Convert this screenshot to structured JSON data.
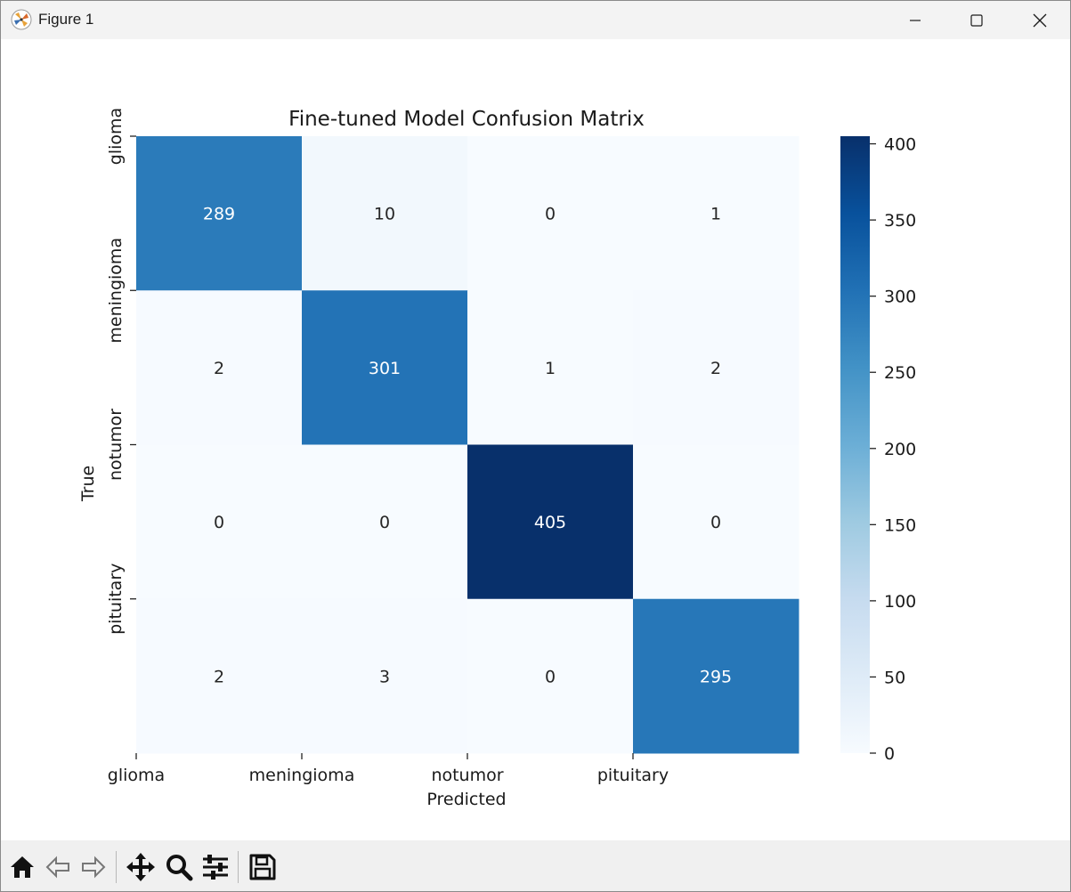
{
  "window": {
    "title": "Figure 1",
    "icons": [
      "matplotlib-logo-icon",
      "minimize-icon",
      "maximize-icon",
      "close-icon"
    ]
  },
  "toolbar": {
    "icons": [
      "home-icon",
      "back-icon",
      "forward-icon",
      "pan-icon",
      "zoom-icon",
      "configure-subplots-icon",
      "save-icon"
    ]
  },
  "chart_data": {
    "type": "heatmap",
    "title": "Fine-tuned Model Confusion Matrix",
    "xlabel": "Predicted",
    "ylabel": "True",
    "x_categories": [
      "glioma",
      "meningioma",
      "notumor",
      "pituitary"
    ],
    "y_categories": [
      "glioma",
      "meningioma",
      "notumor",
      "pituitary"
    ],
    "matrix": [
      [
        289,
        10,
        0,
        1
      ],
      [
        2,
        301,
        1,
        2
      ],
      [
        0,
        0,
        405,
        0
      ],
      [
        2,
        3,
        0,
        295
      ]
    ],
    "colormap": "Blues",
    "colorbar": {
      "ticks": [
        0,
        50,
        100,
        150,
        200,
        250,
        300,
        350,
        400
      ],
      "range": [
        0,
        405
      ]
    },
    "annotation_colors": {
      "light": "#ffffff",
      "dark": "#262626"
    }
  }
}
